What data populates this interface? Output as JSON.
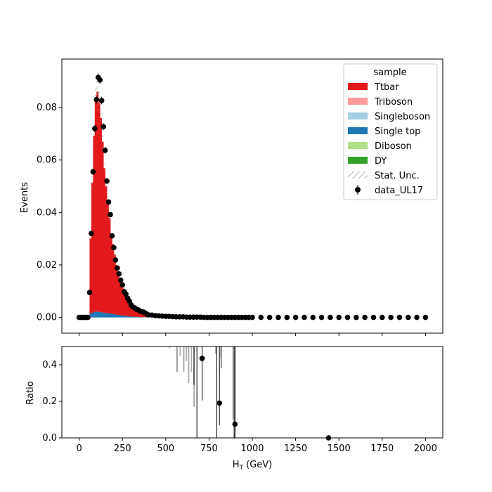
{
  "chart_data": [
    {
      "type": "bar",
      "stacked": true,
      "title": "",
      "xlabel": "H_T (GeV)",
      "ylabel": "Events",
      "xlim": [
        -100,
        2100
      ],
      "ylim": [
        -0.006,
        0.0985
      ],
      "xticks": [
        0,
        250,
        500,
        750,
        1000,
        1250,
        1500,
        1750,
        2000
      ],
      "yticks": [
        0.0,
        0.02,
        0.04,
        0.06,
        0.08
      ],
      "ytick_labels": [
        "0.00",
        "0.02",
        "0.04",
        "0.06",
        "0.08"
      ],
      "legend": {
        "placement": "top-right",
        "title": "sample",
        "entries": [
          {
            "label": "Ttbar",
            "color": "#e31a1c",
            "kind": "fill"
          },
          {
            "label": "Triboson",
            "color": "#fb9a99",
            "kind": "fill"
          },
          {
            "label": "Singleboson",
            "color": "#a6cee3",
            "kind": "fill"
          },
          {
            "label": "Single top",
            "color": "#1f78b4",
            "kind": "fill"
          },
          {
            "label": "Diboson",
            "color": "#b2df8a",
            "kind": "fill"
          },
          {
            "label": "DY",
            "color": "#33a02c",
            "kind": "fill"
          },
          {
            "label": "Stat. Unc.",
            "color": "#888888",
            "kind": "hatch"
          },
          {
            "label": "data_UL17",
            "color": "#000000",
            "kind": "errorbar"
          }
        ]
      },
      "bin_edges": [
        60,
        70,
        80,
        90,
        100,
        110,
        120,
        130,
        140,
        150,
        160,
        170,
        180,
        190,
        200,
        210,
        220,
        230,
        240,
        250,
        260,
        270,
        280,
        290,
        300,
        310,
        320,
        330,
        340,
        350,
        360,
        370,
        380,
        390,
        400
      ],
      "series": [
        {
          "name": "Single top",
          "color": "#1f78b4",
          "values": [
            0.0015,
            0.0018,
            0.0021,
            0.0022,
            0.0022,
            0.0021,
            0.002,
            0.0019,
            0.0018,
            0.0017,
            0.0016,
            0.0015,
            0.0014,
            0.0013,
            0.0012,
            0.0011,
            0.001,
            0.0009,
            0.0008,
            0.0007,
            0.0006,
            0.0005,
            0.0004,
            0.0004,
            0.0003,
            0.0003,
            0.0002,
            0.0002,
            0.0002,
            0.0001,
            0.0001,
            0.0001,
            0.0001,
            0.0001
          ]
        },
        {
          "name": "Ttbar",
          "color": "#e31a1c",
          "values": [
            0.0285,
            0.0495,
            0.0672,
            0.0818,
            0.0838,
            0.0799,
            0.074,
            0.0651,
            0.0551,
            0.0483,
            0.0415,
            0.0365,
            0.0306,
            0.0267,
            0.0228,
            0.0189,
            0.016,
            0.0141,
            0.0122,
            0.0103,
            0.0084,
            0.007,
            0.0061,
            0.0051,
            0.0042,
            0.0037,
            0.0033,
            0.0028,
            0.0023,
            0.0019,
            0.0016,
            0.0014,
            0.0011,
            0.0009
          ]
        }
      ],
      "data_points": {
        "name": "data_UL17",
        "x": [
          0,
          10,
          20,
          30,
          40,
          50,
          60,
          70,
          80,
          90,
          100,
          110,
          120,
          130,
          140,
          150,
          160,
          170,
          180,
          190,
          200,
          210,
          220,
          230,
          240,
          250,
          260,
          270,
          280,
          290,
          300,
          310,
          320,
          330,
          340,
          350,
          360,
          370,
          380,
          390,
          400,
          420,
          440,
          460,
          480,
          500,
          520,
          540,
          560,
          580,
          600,
          620,
          640,
          660,
          680,
          700,
          720,
          740,
          760,
          780,
          800,
          820,
          840,
          860,
          880,
          900,
          920,
          940,
          960,
          980,
          1000,
          1050,
          1100,
          1150,
          1200,
          1250,
          1300,
          1350,
          1400,
          1450,
          1500,
          1550,
          1600,
          1650,
          1700,
          1750,
          1800,
          1850,
          1900,
          1950,
          2000
        ],
        "y": [
          0,
          0,
          0,
          0,
          0,
          0,
          0.0095,
          0.032,
          0.0555,
          0.072,
          0.083,
          0.0915,
          0.0905,
          0.0827,
          0.0727,
          0.0637,
          0.052,
          0.044,
          0.0392,
          0.0311,
          0.0266,
          0.0219,
          0.0188,
          0.0166,
          0.0142,
          0.0124,
          0.0098,
          0.0089,
          0.0073,
          0.0062,
          0.0048,
          0.004,
          0.0037,
          0.0031,
          0.0029,
          0.0025,
          0.0022,
          0.0021,
          0.0017,
          0.0013,
          0.001,
          0.0009,
          0.0007,
          0.0006,
          0.0005,
          0.0004,
          0.0004,
          0.0003,
          0.0002,
          0.0002,
          0.0002,
          0.0001,
          0.0001,
          0.0001,
          0.0001,
          0.0001,
          0,
          0,
          0,
          0,
          0,
          0,
          0,
          0,
          0,
          0,
          0,
          0,
          0,
          0,
          0,
          0,
          0,
          0,
          0,
          0,
          0,
          0,
          0,
          0,
          0,
          0,
          0,
          0,
          0,
          0,
          0,
          0,
          0,
          0,
          0
        ]
      }
    },
    {
      "type": "scatter",
      "title": "",
      "xlabel": "H_T (GeV)",
      "ylabel": "Ratio",
      "xlim": [
        -100,
        2100
      ],
      "ylim": [
        0,
        0.5
      ],
      "xticks": [
        0,
        250,
        500,
        750,
        1000,
        1250,
        1500,
        1750,
        2000
      ],
      "yticks": [
        0.0,
        0.2,
        0.4
      ],
      "ytick_labels": [
        "0.0",
        "0.2",
        "0.4"
      ],
      "points": [
        {
          "x": 710,
          "y": 0.435,
          "err_low": 0.23,
          "err_high": 0.1
        },
        {
          "x": 810,
          "y": 0.19,
          "err_low": 0.12,
          "err_high": 0.31
        },
        {
          "x": 900,
          "y": 0.075,
          "err_low": 0.075,
          "err_high": 0.425
        },
        {
          "x": 1440,
          "y": 0.0,
          "err_low": 0,
          "err_high": 0
        }
      ],
      "black_error_lines": [
        {
          "x": 680,
          "y_low": 0.0,
          "y_high": 0.5
        },
        {
          "x": 795,
          "y_low": 0.0,
          "y_high": 0.5
        },
        {
          "x": 895,
          "y_low": 0.0,
          "y_high": 0.5
        },
        {
          "x": 663,
          "y_low": 0.29,
          "y_high": 0.5
        },
        {
          "x": 820,
          "y_low": 0.38,
          "y_high": 0.5
        }
      ],
      "uncertainty_bands": [
        {
          "x0": 520,
          "x1": 525,
          "y_low": 0.49,
          "y_high": 0.5
        },
        {
          "x0": 560,
          "x1": 570,
          "y_low": 0.36,
          "y_high": 0.5
        },
        {
          "x0": 580,
          "x1": 586,
          "y_low": 0.45,
          "y_high": 0.5
        },
        {
          "x0": 600,
          "x1": 608,
          "y_low": 0.36,
          "y_high": 0.5
        },
        {
          "x0": 615,
          "x1": 622,
          "y_low": 0.42,
          "y_high": 0.5
        },
        {
          "x0": 628,
          "x1": 636,
          "y_low": 0.3,
          "y_high": 0.5
        },
        {
          "x0": 645,
          "x1": 652,
          "y_low": 0.36,
          "y_high": 0.5
        },
        {
          "x0": 660,
          "x1": 668,
          "y_low": 0.17,
          "y_high": 0.5
        },
        {
          "x0": 785,
          "x1": 792,
          "y_low": 0.46,
          "y_high": 0.5
        },
        {
          "x0": 815,
          "x1": 820,
          "y_low": 0.44,
          "y_high": 0.5
        },
        {
          "x0": 885,
          "x1": 892,
          "y_low": 0.1,
          "y_high": 0.5
        }
      ]
    }
  ]
}
